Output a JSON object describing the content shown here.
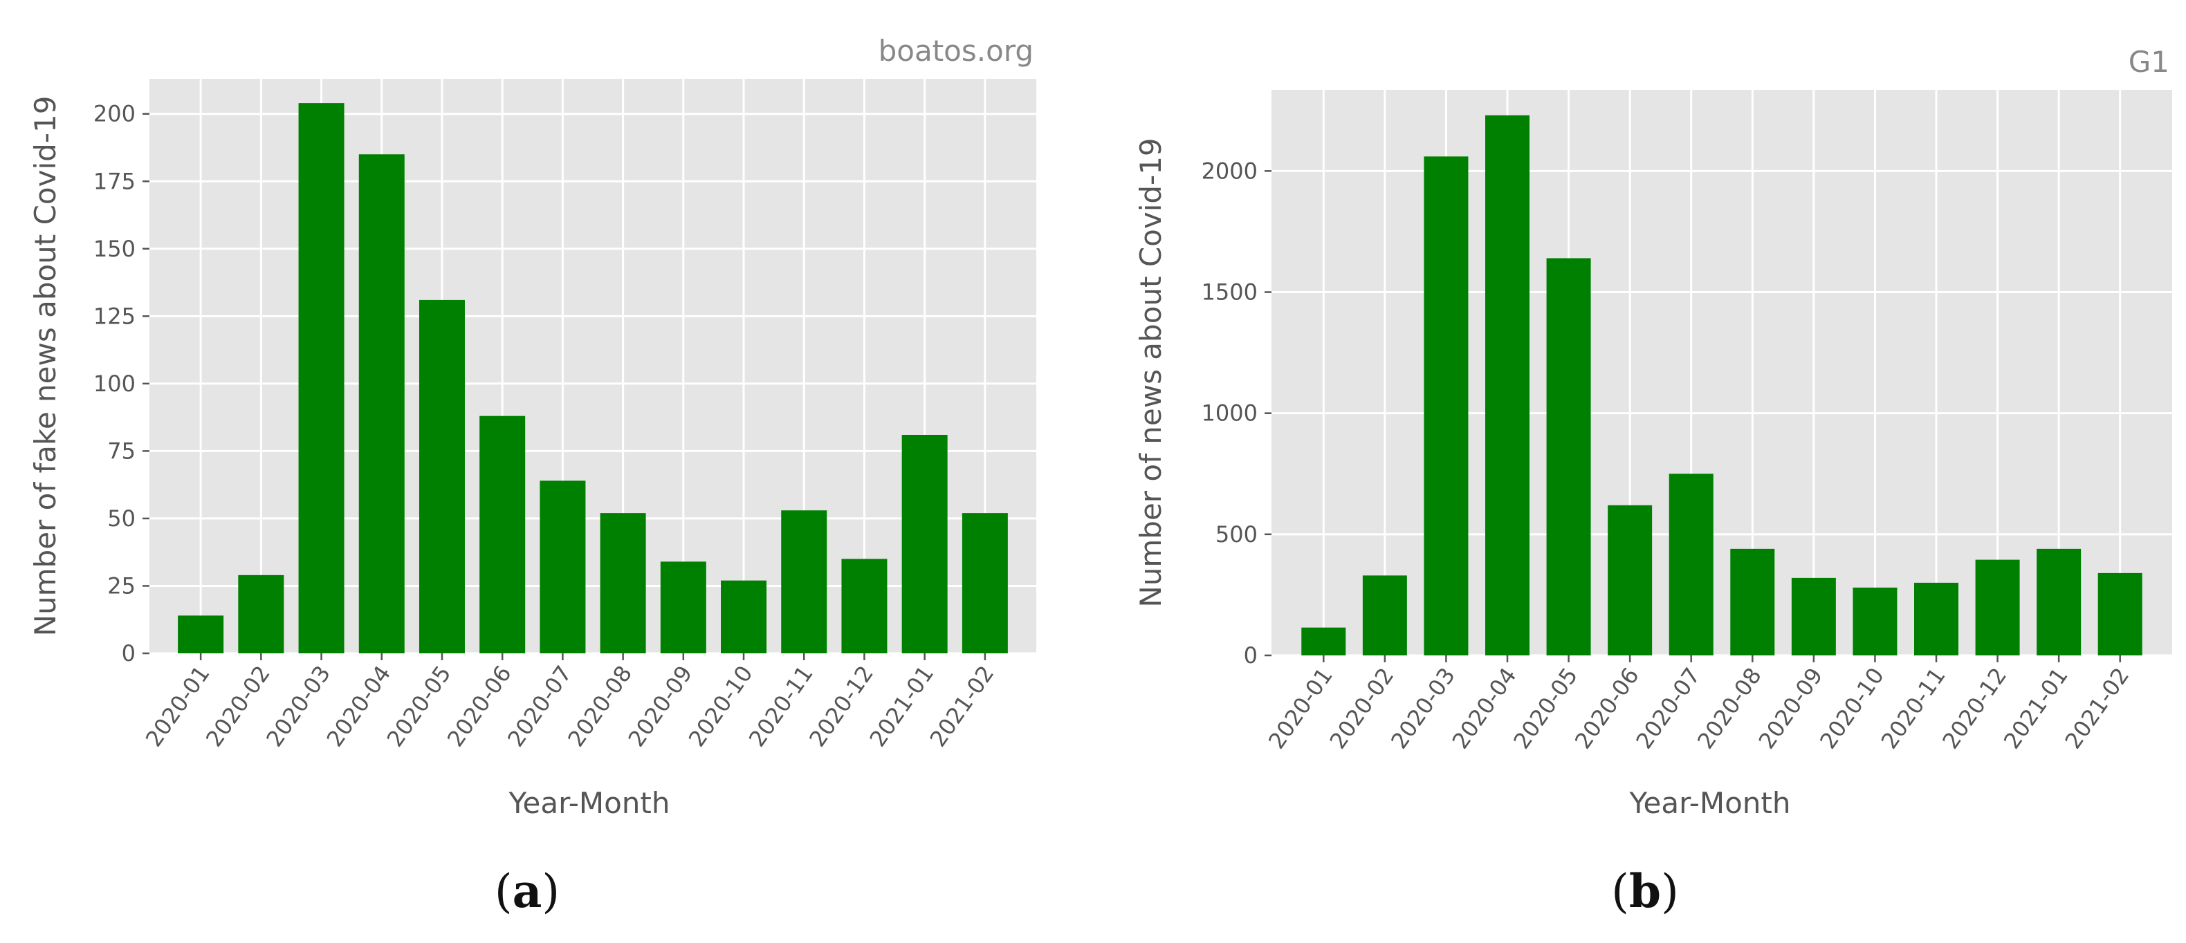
{
  "chart_data": [
    {
      "type": "bar",
      "source_label": "boatos.org",
      "caption_letter": "a",
      "xlabel": "Year-Month",
      "ylabel": "Number of fake news about Covid-19",
      "categories": [
        "2020-01",
        "2020-02",
        "2020-03",
        "2020-04",
        "2020-05",
        "2020-06",
        "2020-07",
        "2020-08",
        "2020-09",
        "2020-10",
        "2020-11",
        "2020-12",
        "2021-01",
        "2021-02"
      ],
      "values": [
        14,
        29,
        204,
        185,
        131,
        88,
        64,
        52,
        34,
        27,
        53,
        35,
        81,
        52
      ],
      "ylim": [
        0,
        213
      ],
      "yticks": [
        0,
        25,
        50,
        75,
        100,
        125,
        150,
        175,
        200
      ],
      "bar_color": "#008000",
      "grid": true,
      "background": "#e5e5e5"
    },
    {
      "type": "bar",
      "source_label": "G1",
      "caption_letter": "b",
      "xlabel": "Year-Month",
      "ylabel": "Number of news about Covid-19",
      "categories": [
        "2020-01",
        "2020-02",
        "2020-03",
        "2020-04",
        "2020-05",
        "2020-06",
        "2020-07",
        "2020-08",
        "2020-09",
        "2020-10",
        "2020-11",
        "2020-12",
        "2021-01",
        "2021-02"
      ],
      "values": [
        115,
        330,
        2060,
        2230,
        1640,
        620,
        750,
        440,
        320,
        280,
        300,
        395,
        440,
        340
      ],
      "ylim": [
        0,
        2335
      ],
      "yticks": [
        0,
        500,
        1000,
        1500,
        2000
      ],
      "bar_color": "#008000",
      "grid": true,
      "background": "#e5e5e5"
    }
  ]
}
